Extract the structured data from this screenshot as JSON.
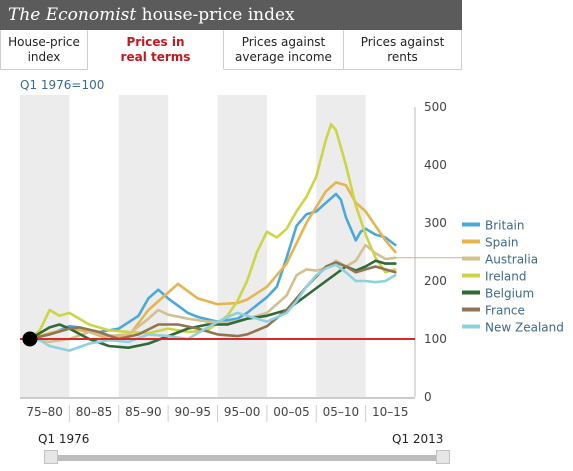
{
  "header": {
    "title_italic": "The Economist",
    "title_rest": " house-price index"
  },
  "tabs": [
    {
      "label": "House-price\nindex",
      "active": false
    },
    {
      "label": "Prices in\nreal terms",
      "active": true
    },
    {
      "label": "Prices against\naverage income",
      "active": false
    },
    {
      "label": "Prices against\nrents",
      "active": false
    }
  ],
  "unit_label": "Q1 1976=100",
  "slider": {
    "start_label": "Q1 1976",
    "end_label": "Q1 2013",
    "start_value": "Q1 1976",
    "end_value": "Q1 2013"
  },
  "colors": {
    "Britain": "#4aa9da",
    "Spain": "#e6b450",
    "Australia": "#d3c092",
    "Ireland": "#cdd547",
    "Belgium": "#2f6a37",
    "France": "#8f7550",
    "New Zealand": "#8fd1de",
    "baseline": "#d8282a",
    "shade": "#ececec"
  },
  "chart_data": {
    "type": "line",
    "title": "",
    "xlabel": "",
    "ylabel": "",
    "xlim": [
      1975,
      2015
    ],
    "ylim": [
      0,
      500
    ],
    "yticks": [
      0,
      100,
      200,
      300,
      400,
      500
    ],
    "x_periods": [
      "75–80",
      "80–85",
      "85–90",
      "90–95",
      "95–00",
      "00–05",
      "05–10",
      "10–15"
    ],
    "base_value": 100,
    "legend_position": "right",
    "series": [
      {
        "name": "Britain",
        "x": [
          1976,
          1978,
          1980,
          1981,
          1983,
          1985,
          1987,
          1988,
          1989,
          1990,
          1992,
          1993,
          1995,
          1997,
          1998,
          2000,
          2001,
          2002,
          2003,
          2004,
          2005,
          2006,
          2007,
          2007.5,
          2008,
          2009,
          2009.5,
          2010,
          2011,
          2012,
          2013
        ],
        "y": [
          100,
          108,
          122,
          120,
          112,
          118,
          140,
          170,
          185,
          170,
          145,
          138,
          130,
          135,
          145,
          172,
          190,
          240,
          295,
          315,
          320,
          335,
          350,
          340,
          310,
          270,
          285,
          290,
          280,
          275,
          262
        ]
      },
      {
        "name": "Spain",
        "x": [
          1976,
          1978,
          1980,
          1982,
          1984,
          1986,
          1988,
          1990,
          1991,
          1993,
          1995,
          1997,
          1998,
          2000,
          2002,
          2004,
          2006,
          2007,
          2008,
          2009,
          2010,
          2011,
          2012,
          2013
        ],
        "y": [
          100,
          110,
          118,
          112,
          100,
          105,
          150,
          180,
          195,
          170,
          160,
          162,
          168,
          190,
          230,
          300,
          355,
          370,
          365,
          335,
          320,
          295,
          270,
          250
        ]
      },
      {
        "name": "Australia",
        "x": [
          1976,
          1978,
          1980,
          1982,
          1984,
          1986,
          1988,
          1989,
          1990,
          1992,
          1994,
          1996,
          1998,
          2000,
          2002,
          2003,
          2004,
          2005,
          2006,
          2007,
          2008,
          2009,
          2010,
          2011,
          2012,
          2013
        ],
        "y": [
          100,
          95,
          100,
          112,
          105,
          108,
          135,
          150,
          142,
          135,
          130,
          128,
          135,
          145,
          175,
          210,
          220,
          218,
          222,
          235,
          225,
          235,
          262,
          248,
          238,
          240
        ]
      },
      {
        "name": "Ireland",
        "x": [
          1976,
          1977,
          1978,
          1979,
          1980,
          1982,
          1984,
          1986,
          1988,
          1990,
          1992,
          1994,
          1996,
          1997,
          1998,
          1999,
          2000,
          2001,
          2002,
          2003,
          2004,
          2005,
          2006,
          2006.5,
          2007,
          2008,
          2009,
          2010,
          2011,
          2012,
          2013
        ],
        "y": [
          100,
          115,
          150,
          140,
          145,
          125,
          115,
          112,
          110,
          118,
          112,
          115,
          140,
          165,
          200,
          250,
          285,
          275,
          290,
          320,
          345,
          380,
          445,
          470,
          460,
          400,
          330,
          280,
          240,
          215,
          220
        ]
      },
      {
        "name": "Belgium",
        "x": [
          1976,
          1978,
          1979,
          1980,
          1982,
          1984,
          1986,
          1988,
          1990,
          1992,
          1994,
          1996,
          1998,
          2000,
          2002,
          2004,
          2006,
          2008,
          2009,
          2010,
          2011,
          2012,
          2013
        ],
        "y": [
          100,
          120,
          125,
          118,
          100,
          88,
          85,
          92,
          105,
          118,
          125,
          125,
          135,
          140,
          150,
          175,
          200,
          225,
          218,
          225,
          235,
          230,
          230
        ]
      },
      {
        "name": "France",
        "x": [
          1976,
          1978,
          1980,
          1981,
          1983,
          1985,
          1987,
          1989,
          1991,
          1993,
          1995,
          1997,
          1998,
          2000,
          2002,
          2004,
          2006,
          2007,
          2008,
          2009,
          2010,
          2011,
          2012,
          2013
        ],
        "y": [
          100,
          108,
          118,
          120,
          112,
          100,
          108,
          125,
          125,
          118,
          108,
          105,
          108,
          122,
          150,
          190,
          225,
          232,
          225,
          215,
          220,
          225,
          220,
          215
        ]
      },
      {
        "name": "New Zealand",
        "x": [
          1976,
          1977,
          1978,
          1980,
          1982,
          1984,
          1986,
          1988,
          1990,
          1992,
          1994,
          1996,
          1997,
          1998,
          2000,
          2002,
          2003,
          2004,
          2005,
          2006,
          2007,
          2008,
          2009,
          2010,
          2011,
          2012,
          2013
        ],
        "y": [
          100,
          98,
          88,
          80,
          92,
          98,
          95,
          108,
          105,
          100,
          120,
          138,
          145,
          140,
          130,
          145,
          165,
          190,
          210,
          222,
          228,
          215,
          200,
          200,
          198,
          200,
          210
        ]
      }
    ]
  }
}
